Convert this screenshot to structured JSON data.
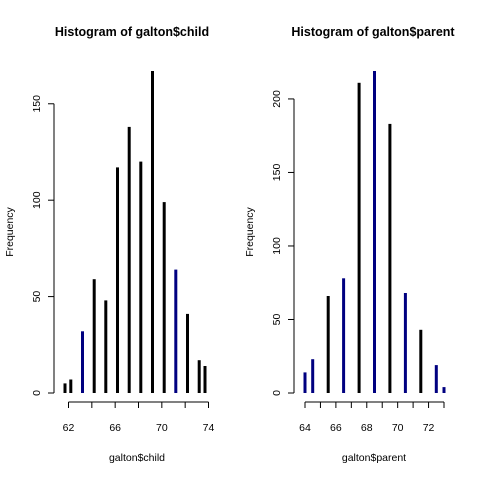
{
  "chart_data": [
    {
      "type": "bar",
      "title": "Histogram of galton$child",
      "xlabel": "galton$child",
      "ylabel": "Frequency",
      "xlim": [
        61.7,
        73.7
      ],
      "ylim": [
        0,
        167
      ],
      "x_ticks": [
        62,
        66,
        70,
        74
      ],
      "x_tick_labels": [
        "62",
        "66",
        "70",
        "74"
      ],
      "x_axis_ticks": [
        62,
        64,
        66,
        68,
        70,
        72,
        74
      ],
      "y_ticks": [
        0,
        50,
        100,
        150
      ],
      "y_tick_labels": [
        "0",
        "50",
        "100",
        "150"
      ],
      "bars": [
        {
          "x": 61.7,
          "value": 5,
          "color": "#000000"
        },
        {
          "x": 62.2,
          "value": 7,
          "color": "#000000"
        },
        {
          "x": 63.2,
          "value": 32,
          "color": "#000080"
        },
        {
          "x": 64.2,
          "value": 59,
          "color": "#000000"
        },
        {
          "x": 65.2,
          "value": 48,
          "color": "#000000"
        },
        {
          "x": 66.2,
          "value": 117,
          "color": "#000000"
        },
        {
          "x": 67.2,
          "value": 138,
          "color": "#000000"
        },
        {
          "x": 68.2,
          "value": 120,
          "color": "#000000"
        },
        {
          "x": 69.2,
          "value": 167,
          "color": "#000000"
        },
        {
          "x": 70.2,
          "value": 99,
          "color": "#000000"
        },
        {
          "x": 71.2,
          "value": 64,
          "color": "#000080"
        },
        {
          "x": 72.2,
          "value": 41,
          "color": "#000000"
        },
        {
          "x": 73.2,
          "value": 17,
          "color": "#000000"
        },
        {
          "x": 73.7,
          "value": 14,
          "color": "#000000"
        }
      ]
    },
    {
      "type": "bar",
      "title": "Histogram of galton$parent",
      "xlabel": "galton$parent",
      "ylabel": "Frequency",
      "xlim": [
        64.0,
        73.0
      ],
      "ylim": [
        0,
        219
      ],
      "x_ticks": [
        64,
        66,
        68,
        70,
        72
      ],
      "x_tick_labels": [
        "64",
        "66",
        "68",
        "70",
        "72"
      ],
      "x_axis_ticks": [
        64,
        65,
        66,
        67,
        68,
        69,
        70,
        71,
        72,
        73
      ],
      "y_ticks": [
        0,
        50,
        100,
        150,
        200
      ],
      "y_tick_labels": [
        "0",
        "50",
        "100",
        "150",
        "200"
      ],
      "bars": [
        {
          "x": 64.0,
          "value": 14,
          "color": "#000080"
        },
        {
          "x": 64.5,
          "value": 23,
          "color": "#000080"
        },
        {
          "x": 65.5,
          "value": 66,
          "color": "#000000"
        },
        {
          "x": 66.5,
          "value": 78,
          "color": "#000080"
        },
        {
          "x": 67.5,
          "value": 211,
          "color": "#000000"
        },
        {
          "x": 68.5,
          "value": 219,
          "color": "#000080"
        },
        {
          "x": 69.5,
          "value": 183,
          "color": "#000000"
        },
        {
          "x": 70.5,
          "value": 68,
          "color": "#000080"
        },
        {
          "x": 71.5,
          "value": 43,
          "color": "#000000"
        },
        {
          "x": 72.5,
          "value": 19,
          "color": "#000080"
        },
        {
          "x": 73.0,
          "value": 4,
          "color": "#000080"
        }
      ]
    }
  ]
}
